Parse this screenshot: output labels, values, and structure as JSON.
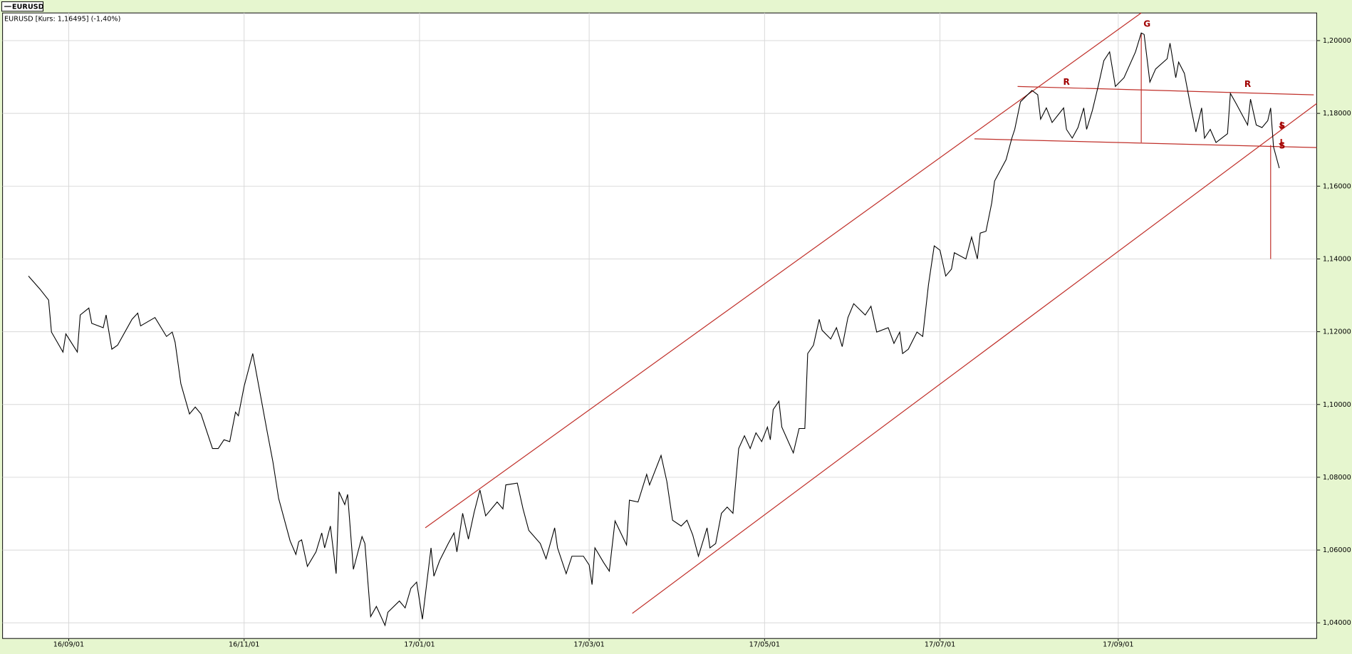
{
  "chart_data": {
    "type": "line",
    "subtitle": "EURUSD [Kurs: 1,16495] (-1,40%)",
    "x": [
      "2016-08-18",
      "2016-08-22",
      "2016-08-25",
      "2016-08-26",
      "2016-08-30",
      "2016-08-31",
      "2016-09-04",
      "2016-09-05",
      "2016-09-08",
      "2016-09-09",
      "2016-09-13",
      "2016-09-14",
      "2016-09-16",
      "2016-09-18",
      "2016-09-23",
      "2016-09-25",
      "2016-09-26",
      "2016-10-01",
      "2016-10-05",
      "2016-10-07",
      "2016-10-08",
      "2016-10-10",
      "2016-10-13",
      "2016-10-15",
      "2016-10-17",
      "2016-10-21",
      "2016-10-23",
      "2016-10-25",
      "2016-10-27",
      "2016-10-29",
      "2016-10-30",
      "2016-11-01",
      "2016-11-04",
      "2016-11-07",
      "2016-11-09",
      "2016-11-11",
      "2016-11-13",
      "2016-11-17",
      "2016-11-19",
      "2016-11-20",
      "2016-11-21",
      "2016-11-23",
      "2016-11-26",
      "2016-11-28",
      "2016-11-29",
      "2016-12-01",
      "2016-12-03",
      "2016-12-04",
      "2016-12-06",
      "2016-12-07",
      "2016-12-09",
      "2016-12-12",
      "2016-12-13",
      "2016-12-15",
      "2016-12-17",
      "2016-12-20",
      "2016-12-21",
      "2016-12-25",
      "2016-12-27",
      "2016-12-29",
      "2016-12-31",
      "2017-01-02",
      "2017-01-05",
      "2017-01-06",
      "2017-01-08",
      "2017-01-11",
      "2017-01-13",
      "2017-01-14",
      "2017-01-16",
      "2017-01-18",
      "2017-01-20",
      "2017-01-22",
      "2017-01-24",
      "2017-01-28",
      "2017-01-30",
      "2017-01-31",
      "2017-02-04",
      "2017-02-06",
      "2017-02-08",
      "2017-02-12",
      "2017-02-14",
      "2017-02-17",
      "2017-02-18",
      "2017-02-21",
      "2017-02-23",
      "2017-02-27",
      "2017-03-01",
      "2017-03-02",
      "2017-03-03",
      "2017-03-06",
      "2017-03-08",
      "2017-03-10",
      "2017-03-14",
      "2017-03-15",
      "2017-03-18",
      "2017-03-21",
      "2017-03-22",
      "2017-03-26",
      "2017-03-28",
      "2017-03-30",
      "2017-04-02",
      "2017-04-04",
      "2017-04-06",
      "2017-04-08",
      "2017-04-11",
      "2017-04-12",
      "2017-04-14",
      "2017-04-16",
      "2017-04-18",
      "2017-04-20",
      "2017-04-22",
      "2017-04-24",
      "2017-04-26",
      "2017-04-28",
      "2017-04-30",
      "2017-05-02",
      "2017-05-03",
      "2017-05-04",
      "2017-05-06",
      "2017-05-07",
      "2017-05-11",
      "2017-05-13",
      "2017-05-15",
      "2017-05-16",
      "2017-05-18",
      "2017-05-20",
      "2017-05-21",
      "2017-05-24",
      "2017-05-26",
      "2017-05-28",
      "2017-05-30",
      "2017-06-01",
      "2017-06-05",
      "2017-06-07",
      "2017-06-09",
      "2017-06-13",
      "2017-06-15",
      "2017-06-17",
      "2017-06-18",
      "2017-06-20",
      "2017-06-23",
      "2017-06-25",
      "2017-06-27",
      "2017-06-29",
      "2017-07-01",
      "2017-07-03",
      "2017-07-05",
      "2017-07-06",
      "2017-07-10",
      "2017-07-12",
      "2017-07-14",
      "2017-07-15",
      "2017-07-17",
      "2017-07-19",
      "2017-07-20",
      "2017-07-24",
      "2017-07-26",
      "2017-07-27",
      "2017-07-29",
      "2017-08-02",
      "2017-08-04",
      "2017-08-05",
      "2017-08-07",
      "2017-08-09",
      "2017-08-13",
      "2017-08-14",
      "2017-08-16",
      "2017-08-18",
      "2017-08-20",
      "2017-08-21",
      "2017-08-23",
      "2017-08-25",
      "2017-08-27",
      "2017-08-29",
      "2017-08-31",
      "2017-09-03",
      "2017-09-07",
      "2017-09-09",
      "2017-09-10",
      "2017-09-12",
      "2017-09-14",
      "2017-09-18",
      "2017-09-19",
      "2017-09-21",
      "2017-09-22",
      "2017-09-24",
      "2017-09-26",
      "2017-09-28",
      "2017-09-30",
      "2017-10-01",
      "2017-10-03",
      "2017-10-05",
      "2017-10-09",
      "2017-10-10",
      "2017-10-12",
      "2017-10-16",
      "2017-10-17",
      "2017-10-19",
      "2017-10-21",
      "2017-10-23",
      "2017-10-24",
      "2017-10-25",
      "2017-10-27"
    ],
    "series": [
      {
        "name": "EURUSD",
        "color": "#000000",
        "values": [
          1.1353,
          1.1317,
          1.1287,
          1.1199,
          1.1144,
          1.1194,
          1.1144,
          1.1246,
          1.1265,
          1.1223,
          1.1211,
          1.1246,
          1.1152,
          1.1163,
          1.1234,
          1.1251,
          1.1216,
          1.1239,
          1.1187,
          1.1199,
          1.1171,
          1.1057,
          1.0974,
          1.0993,
          1.0974,
          1.0879,
          1.0879,
          1.0903,
          1.0898,
          1.0979,
          1.0969,
          1.105,
          1.114,
          1.1012,
          1.0926,
          1.0843,
          1.0742,
          1.0625,
          1.0588,
          1.0623,
          1.0628,
          1.0555,
          1.0595,
          1.0647,
          1.0606,
          1.0666,
          1.0535,
          1.076,
          1.0725,
          1.0753,
          1.0547,
          1.0637,
          1.0618,
          1.0417,
          1.0445,
          1.0393,
          1.0429,
          1.046,
          1.0441,
          1.0495,
          1.0512,
          1.041,
          1.0606,
          1.0528,
          1.0571,
          1.0618,
          1.0647,
          1.0595,
          1.0701,
          1.063,
          1.0704,
          1.0765,
          1.0694,
          1.0732,
          1.0713,
          1.0779,
          1.0784,
          1.0713,
          1.0654,
          1.0618,
          1.0576,
          1.0661,
          1.0606,
          1.0535,
          1.0583,
          1.0583,
          1.0559,
          1.0505,
          1.0606,
          1.0566,
          1.0542,
          1.068,
          1.0614,
          1.0737,
          1.0732,
          1.0808,
          1.0779,
          1.086,
          1.0789,
          1.0682,
          1.0666,
          1.0682,
          1.0642,
          1.0583,
          1.0661,
          1.0606,
          1.0618,
          1.0701,
          1.0718,
          1.0701,
          1.0879,
          1.0914,
          1.0879,
          1.0922,
          1.0898,
          1.0938,
          1.0903,
          1.0986,
          1.1009,
          1.0938,
          1.0867,
          1.0934,
          1.0934,
          1.114,
          1.1163,
          1.1234,
          1.1204,
          1.118,
          1.1211,
          1.1159,
          1.1239,
          1.1277,
          1.1246,
          1.127,
          1.1199,
          1.1211,
          1.1168,
          1.1199,
          1.114,
          1.1152,
          1.1199,
          1.1187,
          1.1329,
          1.1436,
          1.1424,
          1.1353,
          1.1372,
          1.1417,
          1.14,
          1.146,
          1.14,
          1.1471,
          1.1476,
          1.1554,
          1.1614,
          1.1673,
          1.1732,
          1.1756,
          1.1832,
          1.1863,
          1.1851,
          1.1784,
          1.1815,
          1.1775,
          1.1815,
          1.1756,
          1.1732,
          1.1761,
          1.1815,
          1.1756,
          1.1808,
          1.1874,
          1.1945,
          1.1969,
          1.1874,
          1.1898,
          1.1969,
          1.2021,
          1.2017,
          1.1886,
          1.1922,
          1.195,
          1.1993,
          1.1898,
          1.1941,
          1.191,
          1.1827,
          1.1749,
          1.1815,
          1.1732,
          1.1756,
          1.172,
          1.1744,
          1.1855,
          1.1827,
          1.1768,
          1.1839,
          1.1768,
          1.1761,
          1.178,
          1.1815,
          1.1708,
          1.16495
        ]
      }
    ],
    "xlim": [
      "2016-08-09",
      "2017-11-09"
    ],
    "xticks": [
      {
        "value": "2016-09-01",
        "label": "16/09/01"
      },
      {
        "value": "2016-11-01",
        "label": "16/11/01"
      },
      {
        "value": "2017-01-01",
        "label": "17/01/01"
      },
      {
        "value": "2017-03-01",
        "label": "17/03/01"
      },
      {
        "value": "2017-05-01",
        "label": "17/05/01"
      },
      {
        "value": "2017-07-01",
        "label": "17/07/01"
      },
      {
        "value": "2017-09-01",
        "label": "17/09/01"
      }
    ],
    "ylim": [
      1.0357,
      1.2076
    ],
    "yticks": [
      {
        "value": 1.04,
        "label": "1,04000"
      },
      {
        "value": 1.06,
        "label": "1,06000"
      },
      {
        "value": 1.08,
        "label": "1,08000"
      },
      {
        "value": 1.1,
        "label": "1,10000"
      },
      {
        "value": 1.12,
        "label": "1,12000"
      },
      {
        "value": 1.14,
        "label": "1,14000"
      },
      {
        "value": 1.16,
        "label": "1,16000"
      },
      {
        "value": 1.18,
        "label": "1,18000"
      },
      {
        "value": 1.2,
        "label": "1,20000"
      }
    ],
    "grid": true,
    "trendline_color": "#c0302a",
    "trendlines": [
      {
        "x": [
          "2017-01-03",
          "2017-09-09"
        ],
        "y": [
          1.0661,
          1.2076
        ]
      },
      {
        "x": [
          "2017-03-16",
          "2017-11-09"
        ],
        "y": [
          1.0426,
          1.1827
        ]
      },
      {
        "x": [
          "2017-07-28",
          "2017-11-08"
        ],
        "y": [
          1.1874,
          1.1851
        ]
      },
      {
        "x": [
          "2017-07-13",
          "2017-11-09"
        ],
        "y": [
          1.173,
          1.1706
        ]
      },
      {
        "x": [
          "2017-09-09",
          "2017-09-09"
        ],
        "y": [
          1.2021,
          1.172
        ]
      },
      {
        "x": [
          "2017-10-24",
          "2017-10-24"
        ],
        "y": [
          1.1713,
          1.14
        ]
      }
    ],
    "annotation_color": "#a00000",
    "annotations": [
      {
        "text": "G",
        "x": "2017-09-11",
        "y": 1.2045
      },
      {
        "text": "R",
        "x": "2017-08-14",
        "y": 1.1885
      },
      {
        "text": "R",
        "x": "2017-10-16",
        "y": 1.188
      },
      {
        "text": "S",
        "x": "2017-10-28",
        "y": 1.1765
      },
      {
        "text": "S",
        "x": "2017-10-28",
        "y": 1.171
      }
    ]
  }
}
